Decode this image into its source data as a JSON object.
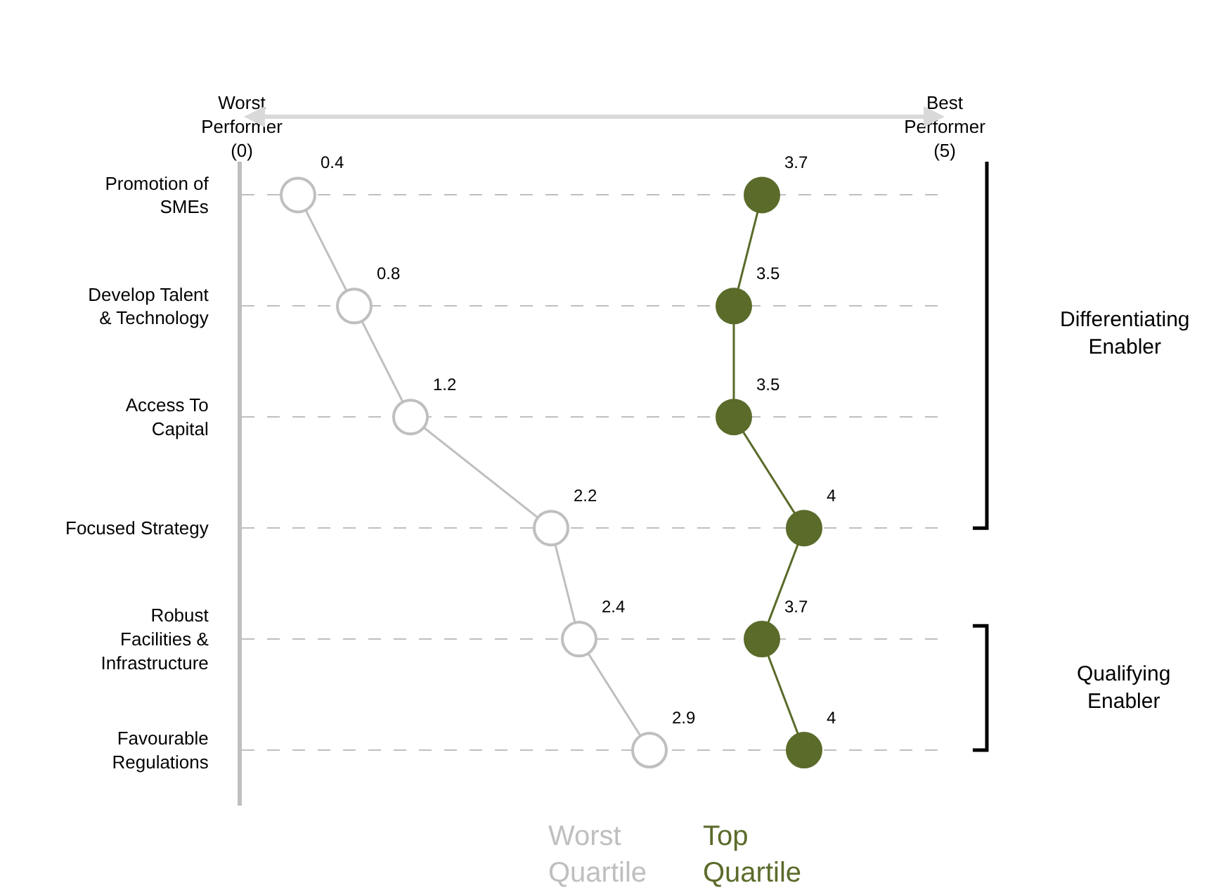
{
  "chart_data": {
    "type": "line",
    "orientation": "horizontal",
    "categories": [
      "Promotion of SMEs",
      "Develop Talent & Technology",
      "Access To Capital",
      "Focused Strategy",
      "Robust Facilities & Infrastructure",
      "Favourable Regulations"
    ],
    "series": [
      {
        "name": "Worst Quartile",
        "color": "#bfbfbf",
        "values": [
          0.4,
          0.8,
          1.2,
          2.2,
          2.4,
          2.9
        ]
      },
      {
        "name": "Top Quartile",
        "color": "#5a6b2a",
        "values": [
          3.7,
          3.5,
          3.5,
          4,
          3.7,
          4
        ]
      }
    ],
    "xlim": [
      0,
      5
    ],
    "xticks": [
      {
        "value": 0,
        "label": "Worst Performer (0)"
      },
      {
        "value": 5,
        "label": "Best Performer (5)"
      }
    ],
    "annotations": [
      "Differentiating Enabler",
      "Qualifying Enabler"
    ],
    "data_labels": true,
    "grid": "y",
    "marker": "circle",
    "line_style": "solid"
  }
}
